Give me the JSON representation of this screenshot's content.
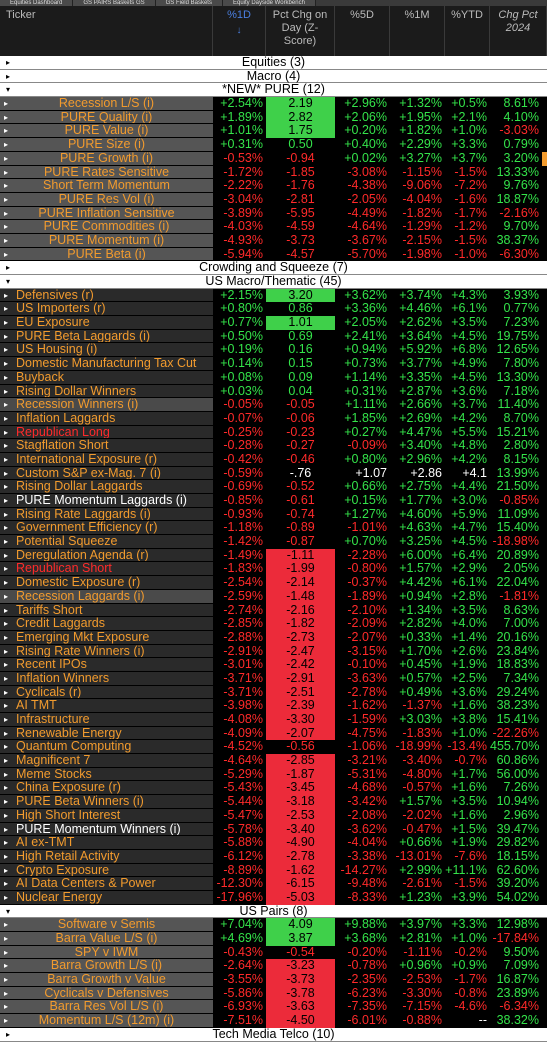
{
  "tabs": [
    "Equities Dashboard",
    "GS PAIRS Baskets GS",
    "GS Field Baskets",
    "Equity Dayside Workbench"
  ],
  "columns": {
    "ticker": "Ticker",
    "d1": "%1D",
    "z_line1": "Pct Chg on",
    "z_line2": "Day (Z-",
    "z_line3": "Score)",
    "d5": "%5D",
    "m1": "%1M",
    "ytd": "%YTD",
    "cp_line1": "Chg Pct",
    "cp_line2": "2024"
  },
  "rows": [
    {
      "type": "group",
      "label": "Equities (3)",
      "exp": "▸"
    },
    {
      "type": "group",
      "label": "Macro (4)",
      "exp": "▸"
    },
    {
      "type": "group",
      "label": "*NEW* PURE (12)",
      "exp": "▾"
    },
    {
      "type": "data",
      "name": "Recession L/S (i)",
      "nc": "orange",
      "center": true,
      "d1": "+2.54%",
      "z": "2.19",
      "zc": "g",
      "d5": "+2.96%",
      "m1": "+1.32%",
      "ytd": "+0.5%",
      "cp": "8.61%"
    },
    {
      "type": "data",
      "name": "PURE Quality (i)",
      "nc": "orange",
      "center": true,
      "d1": "+1.89%",
      "z": "2.82",
      "zc": "g",
      "d5": "+2.06%",
      "m1": "+1.95%",
      "ytd": "+2.1%",
      "cp": "4.10%"
    },
    {
      "type": "data",
      "name": "PURE Value (i)",
      "nc": "orange",
      "center": true,
      "d1": "+1.01%",
      "z": "1.75",
      "zc": "g",
      "d5": "+0.20%",
      "m1": "+1.82%",
      "ytd": "+1.0%",
      "cp": "-3.03%"
    },
    {
      "type": "data",
      "name": "PURE Size (i)",
      "nc": "orange",
      "center": true,
      "d1": "+0.31%",
      "z": "0.50",
      "d5": "+0.40%",
      "m1": "+2.29%",
      "ytd": "+3.3%",
      "cp": "0.79%"
    },
    {
      "type": "data",
      "name": "PURE Growth (i)",
      "nc": "orange",
      "center": true,
      "d1": "-0.53%",
      "z": "-0.94",
      "d5": "+0.02%",
      "m1": "+3.27%",
      "ytd": "+3.7%",
      "cp": "3.20%",
      "edge": true
    },
    {
      "type": "data",
      "name": "PURE Rates Sensitive",
      "nc": "orange",
      "center": true,
      "d1": "-1.72%",
      "z": "-1.85",
      "d5": "-3.08%",
      "m1": "-1.15%",
      "ytd": "-1.5%",
      "cp": "13.33%"
    },
    {
      "type": "data",
      "name": "Short Term Momentum",
      "nc": "orange",
      "center": true,
      "d1": "-2.22%",
      "z": "-1.76",
      "d5": "-4.38%",
      "m1": "-9.06%",
      "ytd": "-7.2%",
      "cp": "9.76%"
    },
    {
      "type": "data",
      "name": "PURE Res Vol (i)",
      "nc": "orange",
      "center": true,
      "d1": "-3.04%",
      "z": "-2.81",
      "d5": "-2.05%",
      "m1": "-4.04%",
      "ytd": "-1.6%",
      "cp": "18.87%"
    },
    {
      "type": "data",
      "name": "PURE Inflation Sensitive",
      "nc": "orange",
      "center": true,
      "d1": "-3.89%",
      "z": "-5.95",
      "d5": "-4.49%",
      "m1": "-1.82%",
      "ytd": "-1.7%",
      "cp": "-2.16%"
    },
    {
      "type": "data",
      "name": "PURE Commodities (i)",
      "nc": "orange",
      "center": true,
      "d1": "-4.03%",
      "z": "-4.59",
      "d5": "-4.64%",
      "m1": "-1.29%",
      "ytd": "-1.2%",
      "cp": "9.70%"
    },
    {
      "type": "data",
      "name": "PURE Momentum (i)",
      "nc": "orange",
      "center": true,
      "d1": "-4.93%",
      "z": "-3.73",
      "d5": "-3.67%",
      "m1": "-2.15%",
      "ytd": "-1.5%",
      "cp": "38.37%"
    },
    {
      "type": "data",
      "name": "PURE Beta (i)",
      "nc": "orange",
      "center": true,
      "d1": "-5.94%",
      "z": "-4.57",
      "d5": "-5.70%",
      "m1": "-1.98%",
      "ytd": "-1.0%",
      "cp": "-6.30%"
    },
    {
      "type": "group",
      "label": "Crowding and Squeeze (7)",
      "exp": "▸"
    },
    {
      "type": "group",
      "label": "US Macro/Thematic (45)",
      "exp": "▾"
    },
    {
      "type": "data",
      "name": "Defensives (r)",
      "nc": "orange",
      "d1": "+2.15%",
      "z": "3.20",
      "zc": "g",
      "d5": "+3.62%",
      "m1": "+3.74%",
      "ytd": "+4.3%",
      "cp": "3.93%"
    },
    {
      "type": "data",
      "name": "US Importers (r)",
      "nc": "orange",
      "d1": "+0.80%",
      "z": "0.86",
      "d5": "+3.36%",
      "m1": "+4.46%",
      "ytd": "+6.1%",
      "cp": "0.77%"
    },
    {
      "type": "data",
      "name": "EU Exposure",
      "nc": "orange",
      "d1": "+0.77%",
      "z": "1.01",
      "zc": "g",
      "d5": "+2.05%",
      "m1": "+2.62%",
      "ytd": "+3.5%",
      "cp": "7.23%"
    },
    {
      "type": "data",
      "name": "PURE Beta Laggards (i)",
      "nc": "orange",
      "d1": "+0.50%",
      "z": "0.69",
      "d5": "+2.41%",
      "m1": "+3.64%",
      "ytd": "+4.5%",
      "cp": "19.75%"
    },
    {
      "type": "data",
      "name": "US Housing (i)",
      "nc": "orange",
      "d1": "+0.19%",
      "z": "0.16",
      "d5": "+0.94%",
      "m1": "+5.92%",
      "ytd": "+6.8%",
      "cp": "12.65%"
    },
    {
      "type": "data",
      "name": "Domestic Manufacturing Tax Cut",
      "nc": "orange",
      "d1": "+0.14%",
      "z": "0.15",
      "d5": "+0.73%",
      "m1": "+3.77%",
      "ytd": "+4.9%",
      "cp": "7.80%"
    },
    {
      "type": "data",
      "name": "Buyback",
      "nc": "orange",
      "d1": "+0.08%",
      "z": "0.09",
      "d5": "+1.14%",
      "m1": "+3.35%",
      "ytd": "+4.5%",
      "cp": "13.30%"
    },
    {
      "type": "data",
      "name": "Rising Dollar Winners",
      "nc": "orange",
      "d1": "+0.03%",
      "z": "0.04",
      "d5": "+0.31%",
      "m1": "+2.87%",
      "ytd": "+3.6%",
      "cp": "7.18%"
    },
    {
      "type": "data",
      "name": "Recession Winners (i)",
      "nc": "orange",
      "sel": true,
      "d1": "-0.05%",
      "z": "-0.05",
      "d5": "+1.11%",
      "m1": "+2.66%",
      "ytd": "+3.7%",
      "cp": "11.40%"
    },
    {
      "type": "data",
      "name": "Inflation Laggards",
      "nc": "orange",
      "d1": "-0.07%",
      "z": "-0.06",
      "d5": "+1.85%",
      "m1": "+2.69%",
      "ytd": "+4.2%",
      "cp": "8.70%"
    },
    {
      "type": "data",
      "name": "Republican Long",
      "nc": "red",
      "d1": "-0.25%",
      "z": "-0.23",
      "d5": "+0.27%",
      "m1": "+4.47%",
      "ytd": "+5.5%",
      "cp": "15.21%"
    },
    {
      "type": "data",
      "name": "Stagflation Short",
      "nc": "orange",
      "d1": "-0.28%",
      "z": "-0.27",
      "d5": "-0.09%",
      "m1": "+3.40%",
      "ytd": "+4.8%",
      "cp": "2.80%"
    },
    {
      "type": "data",
      "name": "International Exposure (r)",
      "nc": "orange",
      "d1": "-0.42%",
      "z": "-0.46",
      "d5": "+0.80%",
      "m1": "+2.96%",
      "ytd": "+4.2%",
      "cp": "8.15%"
    },
    {
      "type": "data",
      "name": "Custom S&P ex-Mag. 7 (i)",
      "nc": "orange",
      "d1": "-0.59%",
      "z": "-.76",
      "white": true,
      "d5": "+1.07",
      "m1": "+2.86",
      "ytd": "+4.1",
      "cp": "13.99%"
    },
    {
      "type": "data",
      "name": "Rising Dollar Laggards",
      "nc": "orange",
      "d1": "-0.69%",
      "z": "-0.52",
      "d5": "+0.66%",
      "m1": "+2.75%",
      "ytd": "+4.4%",
      "cp": "21.50%"
    },
    {
      "type": "data",
      "name": "PURE Momentum Laggards (i)",
      "nc": "white",
      "d1": "-0.85%",
      "z": "-0.61",
      "d5": "+0.15%",
      "m1": "+1.77%",
      "ytd": "+3.0%",
      "cp": "-0.85%"
    },
    {
      "type": "data",
      "name": "Rising Rate Laggards (i)",
      "nc": "orange",
      "d1": "-0.93%",
      "z": "-0.74",
      "d5": "+1.27%",
      "m1": "+4.60%",
      "ytd": "+5.9%",
      "cp": "11.09%"
    },
    {
      "type": "data",
      "name": "Government Efficiency (r)",
      "nc": "orange",
      "d1": "-1.18%",
      "z": "-0.89",
      "d5": "-1.01%",
      "m1": "+4.63%",
      "ytd": "+4.7%",
      "cp": "15.40%"
    },
    {
      "type": "data",
      "name": "Potential Squeeze",
      "nc": "orange",
      "d1": "-1.42%",
      "z": "-0.87",
      "d5": "+0.70%",
      "m1": "+3.25%",
      "ytd": "+4.5%",
      "cp": "-18.98%"
    },
    {
      "type": "data",
      "name": "Deregulation Agenda (r)",
      "nc": "orange",
      "d1": "-1.49%",
      "z": "-1.11",
      "zc": "r",
      "d5": "-2.28%",
      "m1": "+6.00%",
      "ytd": "+6.4%",
      "cp": "20.89%"
    },
    {
      "type": "data",
      "name": "Republican Short",
      "nc": "red",
      "d1": "-1.83%",
      "z": "-1.99",
      "zc": "r",
      "d5": "-0.80%",
      "m1": "+1.57%",
      "ytd": "+2.9%",
      "cp": "2.05%"
    },
    {
      "type": "data",
      "name": "Domestic Exposure (r)",
      "nc": "orange",
      "d1": "-2.54%",
      "z": "-2.14",
      "zc": "r",
      "d5": "-0.37%",
      "m1": "+4.42%",
      "ytd": "+6.1%",
      "cp": "22.04%"
    },
    {
      "type": "data",
      "name": "Recession Laggards (i)",
      "nc": "orange",
      "sel": true,
      "d1": "-2.59%",
      "z": "-1.48",
      "zc": "r",
      "d5": "-1.89%",
      "m1": "+0.94%",
      "ytd": "+2.8%",
      "cp": "-1.81%"
    },
    {
      "type": "data",
      "name": "Tariffs Short",
      "nc": "orange",
      "d1": "-2.74%",
      "z": "-2.16",
      "zc": "r",
      "d5": "-2.10%",
      "m1": "+1.34%",
      "ytd": "+3.5%",
      "cp": "8.63%"
    },
    {
      "type": "data",
      "name": "Credit Laggards",
      "nc": "orange",
      "d1": "-2.85%",
      "z": "-1.82",
      "zc": "r",
      "d5": "-2.09%",
      "m1": "+2.82%",
      "ytd": "+4.0%",
      "cp": "7.00%"
    },
    {
      "type": "data",
      "name": "Emerging Mkt Exposure",
      "nc": "orange",
      "d1": "-2.88%",
      "z": "-2.73",
      "zc": "r",
      "d5": "-2.07%",
      "m1": "+0.33%",
      "ytd": "+1.4%",
      "cp": "20.16%"
    },
    {
      "type": "data",
      "name": "Rising Rate Winners (i)",
      "nc": "orange",
      "d1": "-2.91%",
      "z": "-2.47",
      "zc": "r",
      "d5": "-3.15%",
      "m1": "+1.70%",
      "ytd": "+2.6%",
      "cp": "23.84%"
    },
    {
      "type": "data",
      "name": "Recent IPOs",
      "nc": "orange",
      "d1": "-3.01%",
      "z": "-2.42",
      "zc": "r",
      "d5": "-0.10%",
      "m1": "+0.45%",
      "ytd": "+1.9%",
      "cp": "18.83%"
    },
    {
      "type": "data",
      "name": "Inflation Winners",
      "nc": "orange",
      "d1": "-3.71%",
      "z": "-2.91",
      "zc": "r",
      "d5": "-3.63%",
      "m1": "+0.57%",
      "ytd": "+2.5%",
      "cp": "7.34%"
    },
    {
      "type": "data",
      "name": "Cyclicals (r)",
      "nc": "orange",
      "d1": "-3.71%",
      "z": "-2.51",
      "zc": "r",
      "d5": "-2.78%",
      "m1": "+0.49%",
      "ytd": "+3.6%",
      "cp": "29.24%"
    },
    {
      "type": "data",
      "name": "AI TMT",
      "nc": "orange",
      "d1": "-3.98%",
      "z": "-2.39",
      "zc": "r",
      "d5": "-1.62%",
      "m1": "-1.37%",
      "ytd": "+1.6%",
      "cp": "38.23%"
    },
    {
      "type": "data",
      "name": "Infrastructure",
      "nc": "orange",
      "d1": "-4.08%",
      "z": "-3.30",
      "zc": "r",
      "d5": "-1.59%",
      "m1": "+3.03%",
      "ytd": "+3.8%",
      "cp": "15.41%"
    },
    {
      "type": "data",
      "name": "Renewable Energy",
      "nc": "orange",
      "d1": "-4.09%",
      "z": "-2.07",
      "zc": "r",
      "d5": "-4.75%",
      "m1": "-1.83%",
      "ytd": "+1.0%",
      "cp": "-22.26%"
    },
    {
      "type": "data",
      "name": "Quantum Computing",
      "nc": "orange",
      "d1": "-4.52%",
      "z": "-0.56",
      "d5": "-1.06%",
      "m1": "-18.99%",
      "ytd": "-13.4%",
      "cp": "455.70%"
    },
    {
      "type": "data",
      "name": "Magnificent 7",
      "nc": "orange",
      "d1": "-4.64%",
      "z": "-2.85",
      "zc": "r",
      "d5": "-3.21%",
      "m1": "-3.40%",
      "ytd": "-0.7%",
      "cp": "60.86%"
    },
    {
      "type": "data",
      "name": "Meme Stocks",
      "nc": "orange",
      "d1": "-5.29%",
      "z": "-1.87",
      "zc": "r",
      "d5": "-5.31%",
      "m1": "-4.80%",
      "ytd": "+1.7%",
      "cp": "56.00%"
    },
    {
      "type": "data",
      "name": "China Exposure (r)",
      "nc": "orange",
      "d1": "-5.43%",
      "z": "-3.45",
      "zc": "r",
      "d5": "-4.68%",
      "m1": "-0.57%",
      "ytd": "+1.6%",
      "cp": "7.26%"
    },
    {
      "type": "data",
      "name": "PURE Beta Winners (i)",
      "nc": "orange",
      "d1": "-5.44%",
      "z": "-3.18",
      "zc": "r",
      "d5": "-3.42%",
      "m1": "+1.57%",
      "ytd": "+3.5%",
      "cp": "10.94%"
    },
    {
      "type": "data",
      "name": "High Short Interest",
      "nc": "orange",
      "d1": "-5.47%",
      "z": "-2.53",
      "zc": "r",
      "d5": "-2.08%",
      "m1": "-2.02%",
      "ytd": "+1.6%",
      "cp": "2.96%"
    },
    {
      "type": "data",
      "name": "PURE Momentum Winners (i)",
      "nc": "white",
      "d1": "-5.78%",
      "z": "-3.40",
      "zc": "r",
      "d5": "-3.62%",
      "m1": "-0.47%",
      "ytd": "+1.5%",
      "cp": "39.47%"
    },
    {
      "type": "data",
      "name": "AI ex-TMT",
      "nc": "orange",
      "d1": "-5.88%",
      "z": "-4.90",
      "zc": "r",
      "d5": "-4.04%",
      "m1": "+0.66%",
      "ytd": "+1.9%",
      "cp": "29.82%"
    },
    {
      "type": "data",
      "name": "High Retail Activity",
      "nc": "orange",
      "d1": "-6.12%",
      "z": "-2.78",
      "zc": "r",
      "d5": "-3.38%",
      "m1": "-13.01%",
      "ytd": "-7.6%",
      "cp": "18.15%"
    },
    {
      "type": "data",
      "name": "Crypto Exposure",
      "nc": "orange",
      "d1": "-8.89%",
      "z": "-1.62",
      "zc": "r",
      "d5": "-14.27%",
      "m1": "+2.99%",
      "ytd": "+11.1%",
      "cp": "62.60%"
    },
    {
      "type": "data",
      "name": "AI Data Centers & Power",
      "nc": "orange",
      "d1": "-12.30%",
      "z": "-6.15",
      "zc": "r",
      "d5": "-9.48%",
      "m1": "-2.61%",
      "ytd": "-1.5%",
      "cp": "39.20%"
    },
    {
      "type": "data",
      "name": "Nuclear Energy",
      "nc": "orange",
      "d1": "-17.96%",
      "z": "-5.03",
      "zc": "r",
      "d5": "-8.33%",
      "m1": "+1.23%",
      "ytd": "+3.9%",
      "cp": "54.02%"
    },
    {
      "type": "group",
      "label": "US Pairs (8)",
      "exp": "▾"
    },
    {
      "type": "data",
      "name": "Software v Semis",
      "nc": "orange",
      "center": true,
      "d1": "+7.04%",
      "z": "4.09",
      "zc": "g",
      "d5": "+9.88%",
      "m1": "+3.97%",
      "ytd": "+3.3%",
      "cp": "12.98%"
    },
    {
      "type": "data",
      "name": "Barra Value L/S (i)",
      "nc": "orange",
      "center": true,
      "d1": "+4.69%",
      "z": "3.87",
      "zc": "g",
      "d5": "+3.68%",
      "m1": "+2.81%",
      "ytd": "+1.0%",
      "cp": "-17.84%"
    },
    {
      "type": "data",
      "name": "SPY v IWM",
      "nc": "orange",
      "center": true,
      "d1": "-0.43%",
      "z": "-0.54",
      "d5": "-0.20%",
      "m1": "-1.11%",
      "ytd": "-0.2%",
      "cp": "9.50%"
    },
    {
      "type": "data",
      "name": "Barra Growth L/S (i)",
      "nc": "orange",
      "center": true,
      "d1": "-2.64%",
      "z": "-3.23",
      "zc": "r",
      "d5": "-0.78%",
      "m1": "+0.96%",
      "ytd": "+0.9%",
      "cp": "7.09%"
    },
    {
      "type": "data",
      "name": "Barra Growth v Value",
      "nc": "orange",
      "center": true,
      "d1": "-3.55%",
      "z": "-3.73",
      "zc": "r",
      "d5": "-2.35%",
      "m1": "-2.53%",
      "ytd": "-1.7%",
      "cp": "16.87%"
    },
    {
      "type": "data",
      "name": "Cyclicals v Defensives",
      "nc": "orange",
      "center": true,
      "d1": "-5.86%",
      "z": "-3.78",
      "zc": "r",
      "d5": "-6.23%",
      "m1": "-3.30%",
      "ytd": "-0.8%",
      "cp": "23.89%"
    },
    {
      "type": "data",
      "name": "Barra Res Vol L/S (i)",
      "nc": "orange",
      "center": true,
      "d1": "-6.93%",
      "z": "-3.63",
      "zc": "r",
      "d5": "-7.35%",
      "m1": "-7.15%",
      "ytd": "-4.6%",
      "cp": "-6.34%"
    },
    {
      "type": "data",
      "name": "Momentum L/S (12m) (i)",
      "nc": "orange",
      "center": true,
      "d1": "-7.51%",
      "z": "-4.50",
      "zc": "r",
      "d5": "-6.01%",
      "m1": "-0.88%",
      "ytd": "--",
      "cp": "38.32%"
    },
    {
      "type": "group",
      "label": "Tech Media Telco (10)",
      "exp": "▸"
    }
  ]
}
